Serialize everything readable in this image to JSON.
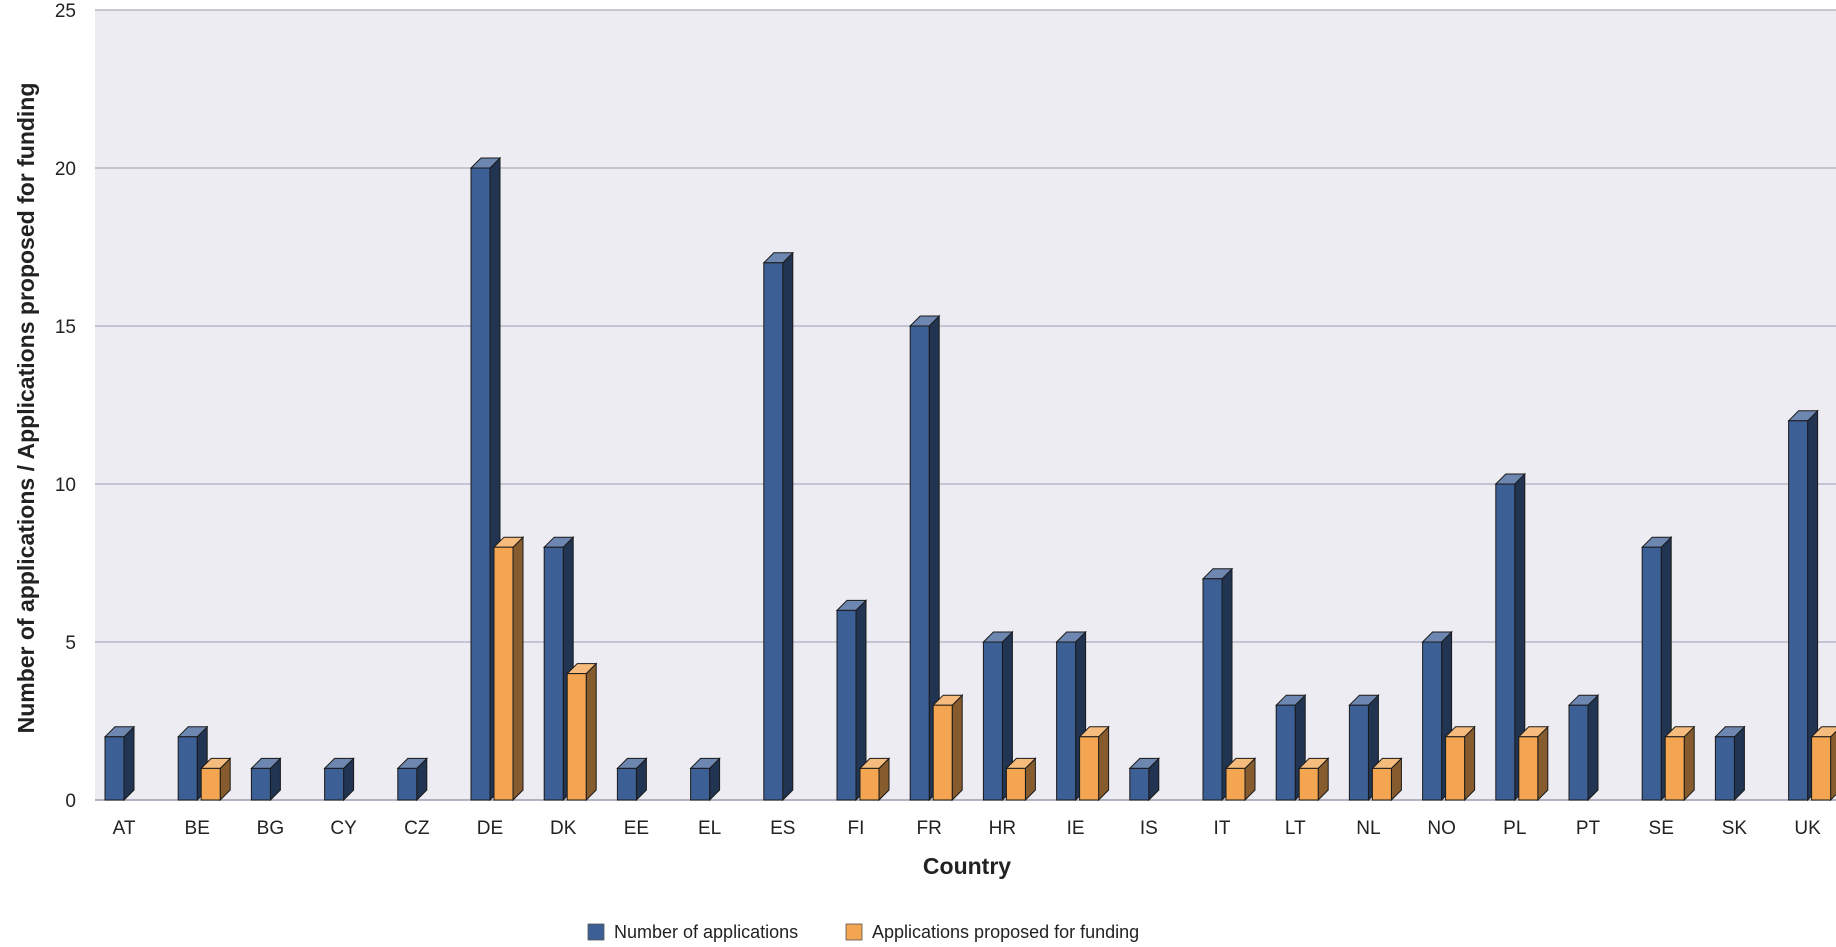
{
  "chart_data": {
    "type": "bar",
    "title": "",
    "xlabel": "Country",
    "ylabel": "Number of applications / Applications proposed for funding",
    "ylim": [
      0,
      25
    ],
    "yticks": [
      0,
      5,
      10,
      15,
      20,
      25
    ],
    "grid": true,
    "legend_position": "bottom-center",
    "categories": [
      "AT",
      "BE",
      "BG",
      "CY",
      "CZ",
      "DE",
      "DK",
      "EE",
      "EL",
      "ES",
      "FI",
      "FR",
      "HR",
      "IE",
      "IS",
      "IT",
      "LT",
      "NL",
      "NO",
      "PL",
      "PT",
      "SE",
      "SK",
      "UK"
    ],
    "series": [
      {
        "name": "Number of applications",
        "color": "#3c5f95",
        "values": [
          2,
          2,
          1,
          1,
          1,
          20,
          8,
          1,
          1,
          17,
          6,
          15,
          5,
          5,
          1,
          7,
          3,
          3,
          5,
          10,
          3,
          8,
          2,
          12
        ]
      },
      {
        "name": "Applications proposed for funding",
        "color": "#f3a552",
        "values": [
          0,
          1,
          0,
          0,
          0,
          8,
          4,
          0,
          0,
          0,
          1,
          3,
          1,
          2,
          0,
          1,
          1,
          1,
          2,
          2,
          0,
          2,
          0,
          2
        ]
      }
    ]
  }
}
